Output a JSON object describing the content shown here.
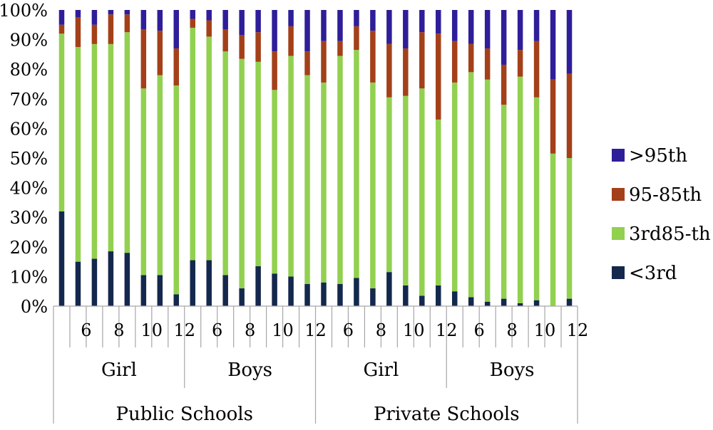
{
  "chart_data": {
    "type": "bar",
    "stacked": true,
    "ylim": [
      0,
      100
    ],
    "yticks": [
      "0%",
      "10%",
      "20%",
      "30%",
      "40%",
      "50%",
      "60%",
      "70%",
      "80%",
      "90%",
      "100%"
    ],
    "grid": false,
    "legend_position": "right",
    "xtick_labels": [
      "",
      "6",
      "",
      "8",
      "",
      "10",
      "",
      "12",
      "",
      "6",
      "",
      "8",
      "",
      "10",
      "",
      "12",
      "",
      "6",
      "",
      "8",
      "",
      "10",
      "",
      "12",
      "",
      "6",
      "",
      "8",
      "",
      "10",
      "",
      "12",
      ""
    ],
    "group_labels": [
      "Girl",
      "Boys",
      "Girl",
      "Boys"
    ],
    "super_group_labels": [
      "Public Schools",
      "Private Schools"
    ],
    "series": [
      {
        "name": "<3rd",
        "color": "#13284c",
        "values": [
          32,
          15,
          16,
          18.5,
          18,
          10.5,
          10.5,
          4,
          15.5,
          15.5,
          10.5,
          6,
          13.5,
          11,
          10,
          7.5,
          8,
          7.5,
          9.5,
          6,
          11.5,
          7,
          3.5,
          7,
          5,
          3,
          1.5,
          2.5,
          1,
          2,
          0,
          2.5
        ]
      },
      {
        "name": "3rd85-th",
        "color": "#92d050",
        "values": [
          60,
          72.5,
          72.5,
          70,
          74.5,
          63,
          67.5,
          70.5,
          78.5,
          75.5,
          75.5,
          77.5,
          69,
          62,
          74.5,
          70.5,
          67.5,
          77,
          77,
          69.5,
          59,
          64,
          70,
          56,
          70.5,
          76,
          75,
          65.5,
          76.5,
          68.5,
          51.5,
          47.5
        ]
      },
      {
        "name": "95-85th",
        "color": "#a3401a",
        "values": [
          3,
          10,
          6.5,
          10,
          6,
          20,
          15,
          12.5,
          3,
          5.5,
          7.5,
          8,
          10,
          13,
          10,
          8,
          14,
          5,
          8,
          17.5,
          18,
          16,
          19,
          29,
          14,
          9.5,
          10.5,
          13.5,
          9,
          19,
          25,
          28.5
        ]
      },
      {
        "name": ">95th",
        "color": "#2e1e99",
        "values": [
          5,
          2.5,
          5,
          1.5,
          1.5,
          6.5,
          7,
          13,
          3,
          3.5,
          6.5,
          8.5,
          7.5,
          14,
          5.5,
          14,
          10.5,
          10.5,
          5.5,
          7,
          11.5,
          13,
          7.5,
          8,
          10.5,
          11.5,
          13,
          18.5,
          13.5,
          10.5,
          23.5,
          21.5
        ]
      }
    ]
  }
}
